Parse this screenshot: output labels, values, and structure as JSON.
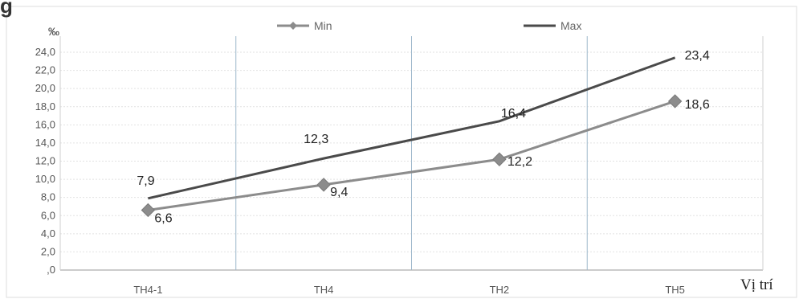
{
  "title_fragment": "g",
  "chart_data": {
    "type": "line",
    "categories": [
      "TH4-1",
      "TH4",
      "TH2",
      "TH5"
    ],
    "series": [
      {
        "name": "Min",
        "values": [
          6.6,
          9.4,
          12.2,
          18.6
        ],
        "color": "#8c8c8c",
        "marker": "diamond"
      },
      {
        "name": "Max",
        "values": [
          7.9,
          12.3,
          16.4,
          23.4
        ],
        "color": "#4a4a4a",
        "marker": "none"
      }
    ],
    "ylabel": "‰",
    "xlabel": "Vị trí",
    "ylim": [
      0,
      24
    ],
    "yticks": [
      ",0",
      "2,0",
      "4,0",
      "6,0",
      "8,0",
      "10,0",
      "12,0",
      "14,0",
      "16,0",
      "18,0",
      "20,0",
      "22,0",
      "24,0"
    ],
    "data_labels": {
      "Min": [
        "6,6",
        "9,4",
        "12,2",
        "18,6"
      ],
      "Max": [
        "7,9",
        "12,3",
        "16,4",
        "23,4"
      ]
    },
    "legend_position": "top",
    "grid": true
  }
}
